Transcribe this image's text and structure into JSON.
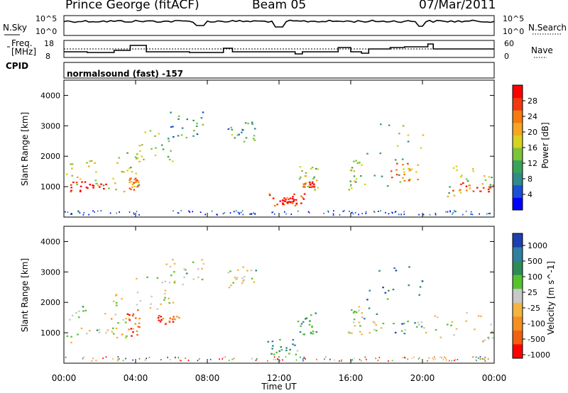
{
  "header": {
    "station": "Prince George (fitACF)",
    "beam": "Beam 05",
    "date": "07/Mar/2011"
  },
  "top_panel": {
    "left_label": "N.Sky",
    "left_ticks": [
      "10^5",
      "10^0"
    ],
    "right_ticks": [
      "10^5",
      "10^0"
    ],
    "right_label": "N.Search"
  },
  "freq_panel": {
    "left_label_1": "Freq.",
    "left_label_2": "[MHz]",
    "left_ticks": [
      "18",
      "8"
    ],
    "right_ticks": [
      "60",
      "0"
    ],
    "right_label": "Nave"
  },
  "cpid": {
    "label": "CPID",
    "value": "normalsound (fast) -157"
  },
  "chart_data": [
    {
      "type": "heatmap",
      "panel": "power",
      "ylabel": "Slant Range [km]",
      "ylim": [
        0,
        4500
      ],
      "yticks": [
        "1000",
        "2000",
        "3000",
        "4000"
      ],
      "xlabel": "Time UT",
      "xticks": [
        "00:00",
        "04:00",
        "08:00",
        "12:00",
        "16:00",
        "20:00",
        "00:00"
      ],
      "colorbar_label": "Power [dB]",
      "colorbar_ticks": [
        "4",
        "8",
        "12",
        "16",
        "20",
        "24",
        "28"
      ],
      "colorbar_colors": [
        "#0000ff",
        "#1a4fd6",
        "#2f8a8a",
        "#3aa35a",
        "#7dc43a",
        "#d7d21e",
        "#f5a623",
        "#f57a10",
        "#ef3a10",
        "#ff0000"
      ],
      "regions": [
        {
          "t0": 0.1,
          "t1": 2.5,
          "r0": 700,
          "r1": 1900,
          "level": 0.55
        },
        {
          "t0": 0.3,
          "t1": 2.4,
          "r0": 850,
          "r1": 1200,
          "level": 0.95
        },
        {
          "t0": 2.6,
          "t1": 4.3,
          "r0": 800,
          "r1": 2300,
          "level": 0.5
        },
        {
          "t0": 3.6,
          "t1": 4.2,
          "r0": 900,
          "r1": 1300,
          "level": 0.75
        },
        {
          "t0": 4.0,
          "t1": 6.2,
          "r0": 1800,
          "r1": 2900,
          "level": 0.5
        },
        {
          "t0": 5.4,
          "t1": 7.8,
          "r0": 2600,
          "r1": 3500,
          "level": 0.3
        },
        {
          "t0": 9.1,
          "t1": 10.8,
          "r0": 2500,
          "r1": 3200,
          "level": 0.35
        },
        {
          "t0": 11.4,
          "t1": 13.4,
          "r0": 300,
          "r1": 800,
          "level": 0.85
        },
        {
          "t0": 12.1,
          "t1": 13.0,
          "r0": 420,
          "r1": 650,
          "level": 1.0
        },
        {
          "t0": 13.1,
          "t1": 14.3,
          "r0": 900,
          "r1": 1700,
          "level": 0.5
        },
        {
          "t0": 13.3,
          "t1": 14.0,
          "r0": 1000,
          "r1": 1200,
          "level": 0.85
        },
        {
          "t0": 15.8,
          "t1": 16.6,
          "r0": 900,
          "r1": 1900,
          "level": 0.5
        },
        {
          "t0": 16.7,
          "t1": 20.0,
          "r0": 1000,
          "r1": 3200,
          "level": 0.45
        },
        {
          "t0": 18.2,
          "t1": 19.8,
          "r0": 1200,
          "r1": 1800,
          "level": 0.7
        },
        {
          "t0": 20.6,
          "t1": 24.0,
          "r0": 700,
          "r1": 1800,
          "level": 0.5
        },
        {
          "t0": 21.5,
          "t1": 24.0,
          "r0": 850,
          "r1": 1150,
          "level": 0.85
        }
      ]
    },
    {
      "type": "heatmap",
      "panel": "velocity",
      "ylabel": "Slant Range [km]",
      "ylim": [
        0,
        4500
      ],
      "yticks": [
        "1000",
        "2000",
        "3000",
        "4000"
      ],
      "xlabel": "Time UT",
      "xticks": [
        "00:00",
        "04:00",
        "08:00",
        "12:00",
        "16:00",
        "20:00",
        "00:00"
      ],
      "colorbar_label": "Velocity [m s^-1]",
      "colorbar_ticks": [
        "1000",
        "500",
        "100",
        "25",
        "-25",
        "-100",
        "-500",
        "-1000"
      ],
      "colorbar_colors": [
        "#1f3fb0",
        "#2f7fa0",
        "#2e8b57",
        "#56c22e",
        "#c8c8c8",
        "#f3b441",
        "#f5901e",
        "#f06010",
        "#ff0000"
      ],
      "regions": [
        {
          "t0": 0.1,
          "t1": 2.5,
          "r0": 700,
          "r1": 1900,
          "level": 0.5
        },
        {
          "t0": 2.6,
          "t1": 3.5,
          "r0": 800,
          "r1": 2300,
          "level": 0.55
        },
        {
          "t0": 3.5,
          "t1": 4.2,
          "r0": 900,
          "r1": 1800,
          "level": 0.8
        },
        {
          "t0": 4.0,
          "t1": 6.2,
          "r0": 1800,
          "r1": 2900,
          "level": 0.5
        },
        {
          "t0": 5.2,
          "t1": 6.4,
          "r0": 1300,
          "r1": 1600,
          "level": 0.85
        },
        {
          "t0": 5.4,
          "t1": 7.8,
          "r0": 2600,
          "r1": 3500,
          "level": 0.5
        },
        {
          "t0": 9.1,
          "t1": 10.8,
          "r0": 2500,
          "r1": 3200,
          "level": 0.5
        },
        {
          "t0": 11.2,
          "t1": 13.0,
          "r0": 300,
          "r1": 800,
          "level": 0.3
        },
        {
          "t0": 13.0,
          "t1": 14.2,
          "r0": 900,
          "r1": 1700,
          "level": 0.3
        },
        {
          "t0": 15.8,
          "t1": 16.6,
          "r0": 900,
          "r1": 1900,
          "level": 0.5
        },
        {
          "t0": 16.7,
          "t1": 20.0,
          "r0": 1000,
          "r1": 3200,
          "level": 0.18
        },
        {
          "t0": 17.0,
          "t1": 20.2,
          "r0": 1000,
          "r1": 1400,
          "level": 0.5
        },
        {
          "t0": 20.6,
          "t1": 24.0,
          "r0": 700,
          "r1": 1800,
          "level": 0.5
        }
      ]
    }
  ]
}
